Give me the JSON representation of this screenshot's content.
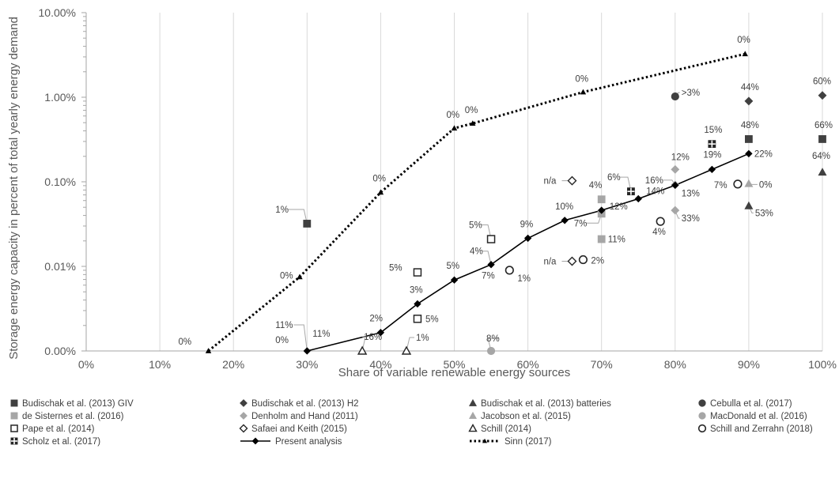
{
  "chart_data": {
    "type": "scatter",
    "xlabel": "Share of variable renewable energy sources",
    "ylabel": "Storage energy capacity in percent of total yearly energy demand",
    "x_unit": "percent",
    "xlim": [
      0,
      100
    ],
    "x_ticks": [
      "0%",
      "10%",
      "20%",
      "30%",
      "40%",
      "50%",
      "60%",
      "70%",
      "80%",
      "90%",
      "100%"
    ],
    "y_scale": "log",
    "y_unit": "percent",
    "ylim": [
      0.001,
      10
    ],
    "y_ticks": [
      {
        "value": 10,
        "label": "10.00%"
      },
      {
        "value": 1,
        "label": "1.00%"
      },
      {
        "value": 0.1,
        "label": "0.10%"
      },
      {
        "value": 0.01,
        "label": "0.01%"
      },
      {
        "value": 0.001,
        "label": "0.00%"
      }
    ],
    "grid": {
      "vertical": true,
      "horizontal": false
    },
    "legend_position": "bottom",
    "series": [
      {
        "name": "Budischak et al. (2013) GIV",
        "marker": "square-filled",
        "color": "#404040",
        "points": [
          {
            "x": 30,
            "y": 0.032,
            "label": "1%"
          },
          {
            "x": 90,
            "y": 0.32,
            "label": "48%"
          },
          {
            "x": 100,
            "y": 0.32,
            "label": "66%"
          }
        ]
      },
      {
        "name": "Budischak et al. (2013) H2",
        "marker": "diamond-filled",
        "color": "#404040",
        "points": [
          {
            "x": 90,
            "y": 0.9,
            "label": "44%"
          },
          {
            "x": 100,
            "y": 1.05,
            "label": "60%"
          }
        ]
      },
      {
        "name": "Budischak et al. (2013) batteries",
        "marker": "triangle-filled",
        "color": "#404040",
        "points": [
          {
            "x": 90,
            "y": 0.052,
            "label": "53%"
          },
          {
            "x": 100,
            "y": 0.13,
            "label": "64%"
          }
        ]
      },
      {
        "name": "Cebulla et al. (2017)",
        "marker": "circle-filled",
        "color": "#404040",
        "points": [
          {
            "x": 80,
            "y": 1.02,
            "label": ">3%"
          }
        ]
      },
      {
        "name": "de Sisternes et al. (2016)",
        "marker": "square-filled",
        "color": "#a6a6a6",
        "points": [
          {
            "x": 70,
            "y": 0.062,
            "label": "4%"
          },
          {
            "x": 70,
            "y": 0.042,
            "label": "7%"
          },
          {
            "x": 70,
            "y": 0.021,
            "label": "11%"
          }
        ]
      },
      {
        "name": "Denholm and Hand (2011)",
        "marker": "diamond-filled",
        "color": "#a6a6a6",
        "points": [
          {
            "x": 80,
            "y": 0.14,
            "label": "12%"
          },
          {
            "x": 80,
            "y": 0.092,
            "label": "16%"
          },
          {
            "x": 80,
            "y": 0.046,
            "label": "33%"
          }
        ]
      },
      {
        "name": "Jacobson et al. (2015)",
        "marker": "triangle-filled",
        "color": "#a6a6a6",
        "points": [
          {
            "x": 90,
            "y": 0.095,
            "label": "0%"
          }
        ]
      },
      {
        "name": "MacDonald et al. (2016)",
        "marker": "circle-filled",
        "color": "#a6a6a6",
        "points": [
          {
            "x": 55,
            "y": 0.001,
            "label": "8%"
          }
        ]
      },
      {
        "name": "Pape et al. (2014)",
        "marker": "square-open",
        "color": "#262626",
        "points": [
          {
            "x": 45,
            "y": 0.0085,
            "label": "5%"
          },
          {
            "x": 45,
            "y": 0.0024,
            "label": "5%"
          },
          {
            "x": 55,
            "y": 0.021,
            "label": "5%"
          }
        ]
      },
      {
        "name": "Safaei and Keith (2015)",
        "marker": "diamond-open",
        "color": "#262626",
        "points": [
          {
            "x": 66,
            "y": 0.103,
            "label": "n/a"
          },
          {
            "x": 66,
            "y": 0.0115,
            "label": "n/a"
          }
        ]
      },
      {
        "name": "Schill (2014)",
        "marker": "triangle-open",
        "color": "#262626",
        "points": [
          {
            "x": 37.5,
            "y": 0.001,
            "label": "16%"
          },
          {
            "x": 43.5,
            "y": 0.001,
            "label": "1%"
          }
        ]
      },
      {
        "name": "Schill and Zerrahn (2018)",
        "marker": "circle-open",
        "color": "#262626",
        "points": [
          {
            "x": 57.5,
            "y": 0.009,
            "label": "1%"
          },
          {
            "x": 67.5,
            "y": 0.012,
            "label": "2%"
          },
          {
            "x": 78,
            "y": 0.034,
            "label": "4%"
          },
          {
            "x": 88.5,
            "y": 0.094,
            "label": "7%"
          }
        ]
      },
      {
        "name": "Scholz et al. (2017)",
        "marker": "square-cross",
        "color": "#262626",
        "points": [
          {
            "x": 74,
            "y": 0.077,
            "label": "6%"
          },
          {
            "x": 85,
            "y": 0.28,
            "label": "15%"
          }
        ]
      },
      {
        "name": "Present analysis",
        "marker": "diamond-filled",
        "color": "#000000",
        "line": "solid",
        "points": [
          {
            "x": 30,
            "y": 0.001,
            "label": "11%"
          },
          {
            "x": 40,
            "y": 0.00165,
            "label": "2%"
          },
          {
            "x": 45,
            "y": 0.0036,
            "label": "3%"
          },
          {
            "x": 50,
            "y": 0.0069,
            "label": "5%"
          },
          {
            "x": 55,
            "y": 0.0105,
            "label": "7%"
          },
          {
            "x": 60,
            "y": 0.0215,
            "label": "9%"
          },
          {
            "x": 65,
            "y": 0.035,
            "label": "10%"
          },
          {
            "x": 70,
            "y": 0.046,
            "label": "12%"
          },
          {
            "x": 75,
            "y": 0.063,
            "label": "14%"
          },
          {
            "x": 80,
            "y": 0.091,
            "label": "13%"
          },
          {
            "x": 85,
            "y": 0.14,
            "label": "19%"
          },
          {
            "x": 90,
            "y": 0.215,
            "label": "22%"
          }
        ]
      },
      {
        "name": "Sinn (2017)",
        "marker": "triangle-filled-small",
        "color": "#000000",
        "line": "dotted",
        "points": [
          {
            "x": 16.6,
            "y": 0.001,
            "label": "0%"
          },
          {
            "x": 29,
            "y": 0.0075,
            "label": "0%"
          },
          {
            "x": 40,
            "y": 0.075,
            "label": "0%"
          },
          {
            "x": 50,
            "y": 0.43,
            "label": "0%"
          },
          {
            "x": 52.5,
            "y": 0.49,
            "label": "0%"
          },
          {
            "x": 67.5,
            "y": 1.15,
            "label": "0%"
          },
          {
            "x": 89.5,
            "y": 3.25,
            "label": "0%"
          }
        ]
      }
    ],
    "annotations": [
      {
        "x": 30,
        "y": 0.001,
        "label": "0%"
      },
      {
        "x": 30,
        "y": 0.001,
        "label": "11%"
      },
      {
        "x": 55,
        "y": 0.0105,
        "label": "4%"
      }
    ]
  }
}
